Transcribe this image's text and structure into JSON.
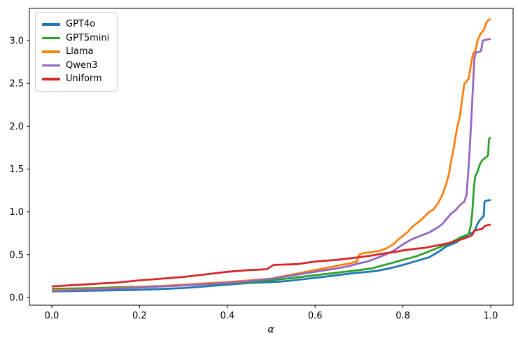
{
  "chart_data": {
    "type": "line",
    "title": "",
    "xlabel": "α",
    "ylabel": "",
    "x_ticks": [
      0.0,
      0.2,
      0.4,
      0.6,
      0.8,
      1.0
    ],
    "y_ticks": [
      0.0,
      0.5,
      1.0,
      1.5,
      2.0,
      2.5,
      3.0
    ],
    "xlim": [
      -0.051,
      1.051
    ],
    "ylim": [
      -0.09,
      3.376
    ],
    "grid": false,
    "legend_position": "upper left",
    "axis_color": "#000000",
    "series": [
      {
        "name": "GPT4o",
        "color": "#1f77b4",
        "points": [
          [
            0,
            0.07
          ],
          [
            0.05,
            0.075
          ],
          [
            0.1,
            0.08
          ],
          [
            0.15,
            0.085
          ],
          [
            0.2,
            0.09
          ],
          [
            0.25,
            0.1
          ],
          [
            0.3,
            0.11
          ],
          [
            0.35,
            0.13
          ],
          [
            0.4,
            0.15
          ],
          [
            0.45,
            0.17
          ],
          [
            0.5,
            0.18
          ],
          [
            0.52,
            0.185
          ],
          [
            0.55,
            0.2
          ],
          [
            0.6,
            0.23
          ],
          [
            0.65,
            0.26
          ],
          [
            0.68,
            0.28
          ],
          [
            0.7,
            0.29
          ],
          [
            0.72,
            0.3
          ],
          [
            0.74,
            0.31
          ],
          [
            0.75,
            0.32
          ],
          [
            0.77,
            0.34
          ],
          [
            0.8,
            0.38
          ],
          [
            0.82,
            0.41
          ],
          [
            0.84,
            0.44
          ],
          [
            0.86,
            0.47
          ],
          [
            0.88,
            0.53
          ],
          [
            0.9,
            0.6
          ],
          [
            0.92,
            0.64
          ],
          [
            0.94,
            0.71
          ],
          [
            0.95,
            0.74
          ],
          [
            0.96,
            0.76
          ],
          [
            0.965,
            0.8
          ],
          [
            0.97,
            0.86
          ],
          [
            0.975,
            0.9
          ],
          [
            0.98,
            0.93
          ],
          [
            0.984,
            0.95
          ],
          [
            0.986,
            1.12
          ],
          [
            0.99,
            1.13
          ],
          [
            1,
            1.14
          ]
        ]
      },
      {
        "name": "GPT5mini",
        "color": "#2ca02c",
        "points": [
          [
            0,
            0.1
          ],
          [
            0.05,
            0.105
          ],
          [
            0.1,
            0.11
          ],
          [
            0.15,
            0.12
          ],
          [
            0.2,
            0.125
          ],
          [
            0.25,
            0.135
          ],
          [
            0.3,
            0.145
          ],
          [
            0.35,
            0.155
          ],
          [
            0.4,
            0.165
          ],
          [
            0.45,
            0.18
          ],
          [
            0.5,
            0.2
          ],
          [
            0.55,
            0.23
          ],
          [
            0.6,
            0.26
          ],
          [
            0.65,
            0.29
          ],
          [
            0.7,
            0.32
          ],
          [
            0.73,
            0.34
          ],
          [
            0.75,
            0.37
          ],
          [
            0.78,
            0.41
          ],
          [
            0.8,
            0.44
          ],
          [
            0.83,
            0.48
          ],
          [
            0.85,
            0.52
          ],
          [
            0.87,
            0.56
          ],
          [
            0.9,
            0.62
          ],
          [
            0.92,
            0.67
          ],
          [
            0.93,
            0.7
          ],
          [
            0.945,
            0.73
          ],
          [
            0.95,
            0.74
          ],
          [
            0.955,
            0.85
          ],
          [
            0.958,
            1.0
          ],
          [
            0.962,
            1.3
          ],
          [
            0.965,
            1.42
          ],
          [
            0.97,
            1.47
          ],
          [
            0.975,
            1.55
          ],
          [
            0.98,
            1.6
          ],
          [
            0.985,
            1.62
          ],
          [
            0.99,
            1.64
          ],
          [
            0.994,
            1.66
          ],
          [
            0.996,
            1.85
          ],
          [
            1,
            1.87
          ]
        ]
      },
      {
        "name": "Llama",
        "color": "#ff7f0e",
        "points": [
          [
            0,
            0.085
          ],
          [
            0.05,
            0.09
          ],
          [
            0.1,
            0.1
          ],
          [
            0.15,
            0.11
          ],
          [
            0.2,
            0.12
          ],
          [
            0.25,
            0.135
          ],
          [
            0.3,
            0.15
          ],
          [
            0.35,
            0.165
          ],
          [
            0.4,
            0.18
          ],
          [
            0.45,
            0.2
          ],
          [
            0.5,
            0.22
          ],
          [
            0.53,
            0.25
          ],
          [
            0.56,
            0.28
          ],
          [
            0.6,
            0.32
          ],
          [
            0.63,
            0.35
          ],
          [
            0.66,
            0.38
          ],
          [
            0.68,
            0.4
          ],
          [
            0.695,
            0.42
          ],
          [
            0.7,
            0.5
          ],
          [
            0.71,
            0.52
          ],
          [
            0.73,
            0.53
          ],
          [
            0.75,
            0.55
          ],
          [
            0.765,
            0.58
          ],
          [
            0.78,
            0.63
          ],
          [
            0.79,
            0.68
          ],
          [
            0.8,
            0.72
          ],
          [
            0.81,
            0.76
          ],
          [
            0.82,
            0.82
          ],
          [
            0.83,
            0.86
          ],
          [
            0.84,
            0.9
          ],
          [
            0.85,
            0.95
          ],
          [
            0.86,
            1.0
          ],
          [
            0.87,
            1.03
          ],
          [
            0.88,
            1.1
          ],
          [
            0.89,
            1.2
          ],
          [
            0.9,
            1.35
          ],
          [
            0.905,
            1.45
          ],
          [
            0.91,
            1.6
          ],
          [
            0.915,
            1.72
          ],
          [
            0.92,
            1.88
          ],
          [
            0.925,
            2.02
          ],
          [
            0.93,
            2.12
          ],
          [
            0.935,
            2.32
          ],
          [
            0.94,
            2.5
          ],
          [
            0.945,
            2.52
          ],
          [
            0.95,
            2.56
          ],
          [
            0.955,
            2.72
          ],
          [
            0.96,
            2.85
          ],
          [
            0.965,
            2.88
          ],
          [
            0.97,
            3.0
          ],
          [
            0.975,
            3.06
          ],
          [
            0.98,
            3.1
          ],
          [
            0.985,
            3.13
          ],
          [
            0.99,
            3.21
          ],
          [
            0.995,
            3.24
          ],
          [
            1,
            3.25
          ]
        ]
      },
      {
        "name": "Qwen3",
        "color": "#9467bd",
        "points": [
          [
            0,
            0.075
          ],
          [
            0.05,
            0.085
          ],
          [
            0.1,
            0.095
          ],
          [
            0.15,
            0.105
          ],
          [
            0.2,
            0.115
          ],
          [
            0.25,
            0.13
          ],
          [
            0.3,
            0.14
          ],
          [
            0.35,
            0.155
          ],
          [
            0.4,
            0.17
          ],
          [
            0.45,
            0.19
          ],
          [
            0.5,
            0.22
          ],
          [
            0.55,
            0.26
          ],
          [
            0.6,
            0.3
          ],
          [
            0.65,
            0.34
          ],
          [
            0.68,
            0.37
          ],
          [
            0.7,
            0.4
          ],
          [
            0.72,
            0.42
          ],
          [
            0.74,
            0.46
          ],
          [
            0.76,
            0.5
          ],
          [
            0.78,
            0.55
          ],
          [
            0.8,
            0.62
          ],
          [
            0.82,
            0.68
          ],
          [
            0.84,
            0.72
          ],
          [
            0.86,
            0.76
          ],
          [
            0.88,
            0.82
          ],
          [
            0.89,
            0.86
          ],
          [
            0.9,
            0.92
          ],
          [
            0.91,
            0.98
          ],
          [
            0.92,
            1.02
          ],
          [
            0.93,
            1.08
          ],
          [
            0.94,
            1.12
          ],
          [
            0.945,
            1.2
          ],
          [
            0.95,
            1.55
          ],
          [
            0.955,
            2.0
          ],
          [
            0.96,
            2.5
          ],
          [
            0.963,
            2.8
          ],
          [
            0.966,
            2.86
          ],
          [
            0.975,
            2.87
          ],
          [
            0.978,
            2.88
          ],
          [
            0.982,
            3.0
          ],
          [
            0.99,
            3.01
          ],
          [
            1,
            3.02
          ]
        ]
      },
      {
        "name": "Uniform",
        "color": "#d62728",
        "points": [
          [
            0,
            0.13
          ],
          [
            0.05,
            0.145
          ],
          [
            0.1,
            0.16
          ],
          [
            0.15,
            0.175
          ],
          [
            0.2,
            0.2
          ],
          [
            0.25,
            0.22
          ],
          [
            0.3,
            0.24
          ],
          [
            0.35,
            0.27
          ],
          [
            0.4,
            0.3
          ],
          [
            0.45,
            0.32
          ],
          [
            0.49,
            0.33
          ],
          [
            0.505,
            0.38
          ],
          [
            0.56,
            0.39
          ],
          [
            0.6,
            0.42
          ],
          [
            0.65,
            0.44
          ],
          [
            0.7,
            0.47
          ],
          [
            0.73,
            0.49
          ],
          [
            0.75,
            0.51
          ],
          [
            0.78,
            0.53
          ],
          [
            0.8,
            0.55
          ],
          [
            0.83,
            0.57
          ],
          [
            0.85,
            0.58
          ],
          [
            0.87,
            0.6
          ],
          [
            0.9,
            0.63
          ],
          [
            0.92,
            0.66
          ],
          [
            0.94,
            0.69
          ],
          [
            0.95,
            0.71
          ],
          [
            0.958,
            0.73
          ],
          [
            0.962,
            0.78
          ],
          [
            0.97,
            0.79
          ],
          [
            0.98,
            0.8
          ],
          [
            0.988,
            0.84
          ],
          [
            1,
            0.85
          ]
        ]
      }
    ]
  }
}
